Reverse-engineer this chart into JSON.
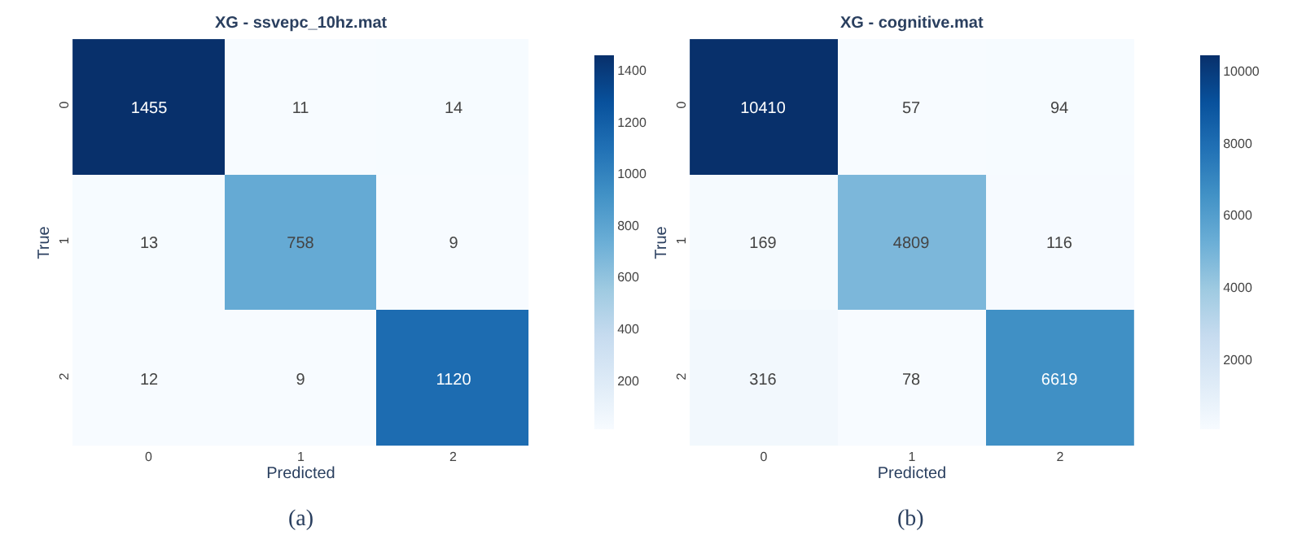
{
  "chart_data": [
    {
      "type": "heatmap",
      "title": "XG - ssvepc_10hz.mat",
      "xlabel": "Predicted",
      "ylabel": "True",
      "categories": [
        "0",
        "1",
        "2"
      ],
      "y_categories": [
        "0",
        "1",
        "2"
      ],
      "cells": [
        [
          1455,
          11,
          14
        ],
        [
          13,
          758,
          9
        ],
        [
          12,
          9,
          1120
        ]
      ],
      "clim": [
        9,
        1455
      ],
      "cticks": [
        200,
        400,
        600,
        800,
        1000,
        1200,
        1400
      ],
      "data_labels": true,
      "annotations": [
        "(a)"
      ]
    },
    {
      "type": "heatmap",
      "title": "XG - cognitive.mat",
      "xlabel": "Predicted",
      "ylabel": "True",
      "categories": [
        "0",
        "1",
        "2"
      ],
      "y_categories": [
        "0",
        "1",
        "2"
      ],
      "cells": [
        [
          10410,
          57,
          94
        ],
        [
          169,
          4809,
          116
        ],
        [
          316,
          78,
          6619
        ]
      ],
      "clim": [
        57,
        10410
      ],
      "cticks": [
        2000,
        4000,
        6000,
        8000,
        10000
      ],
      "data_labels": true,
      "annotations": [
        "(b)"
      ]
    }
  ]
}
